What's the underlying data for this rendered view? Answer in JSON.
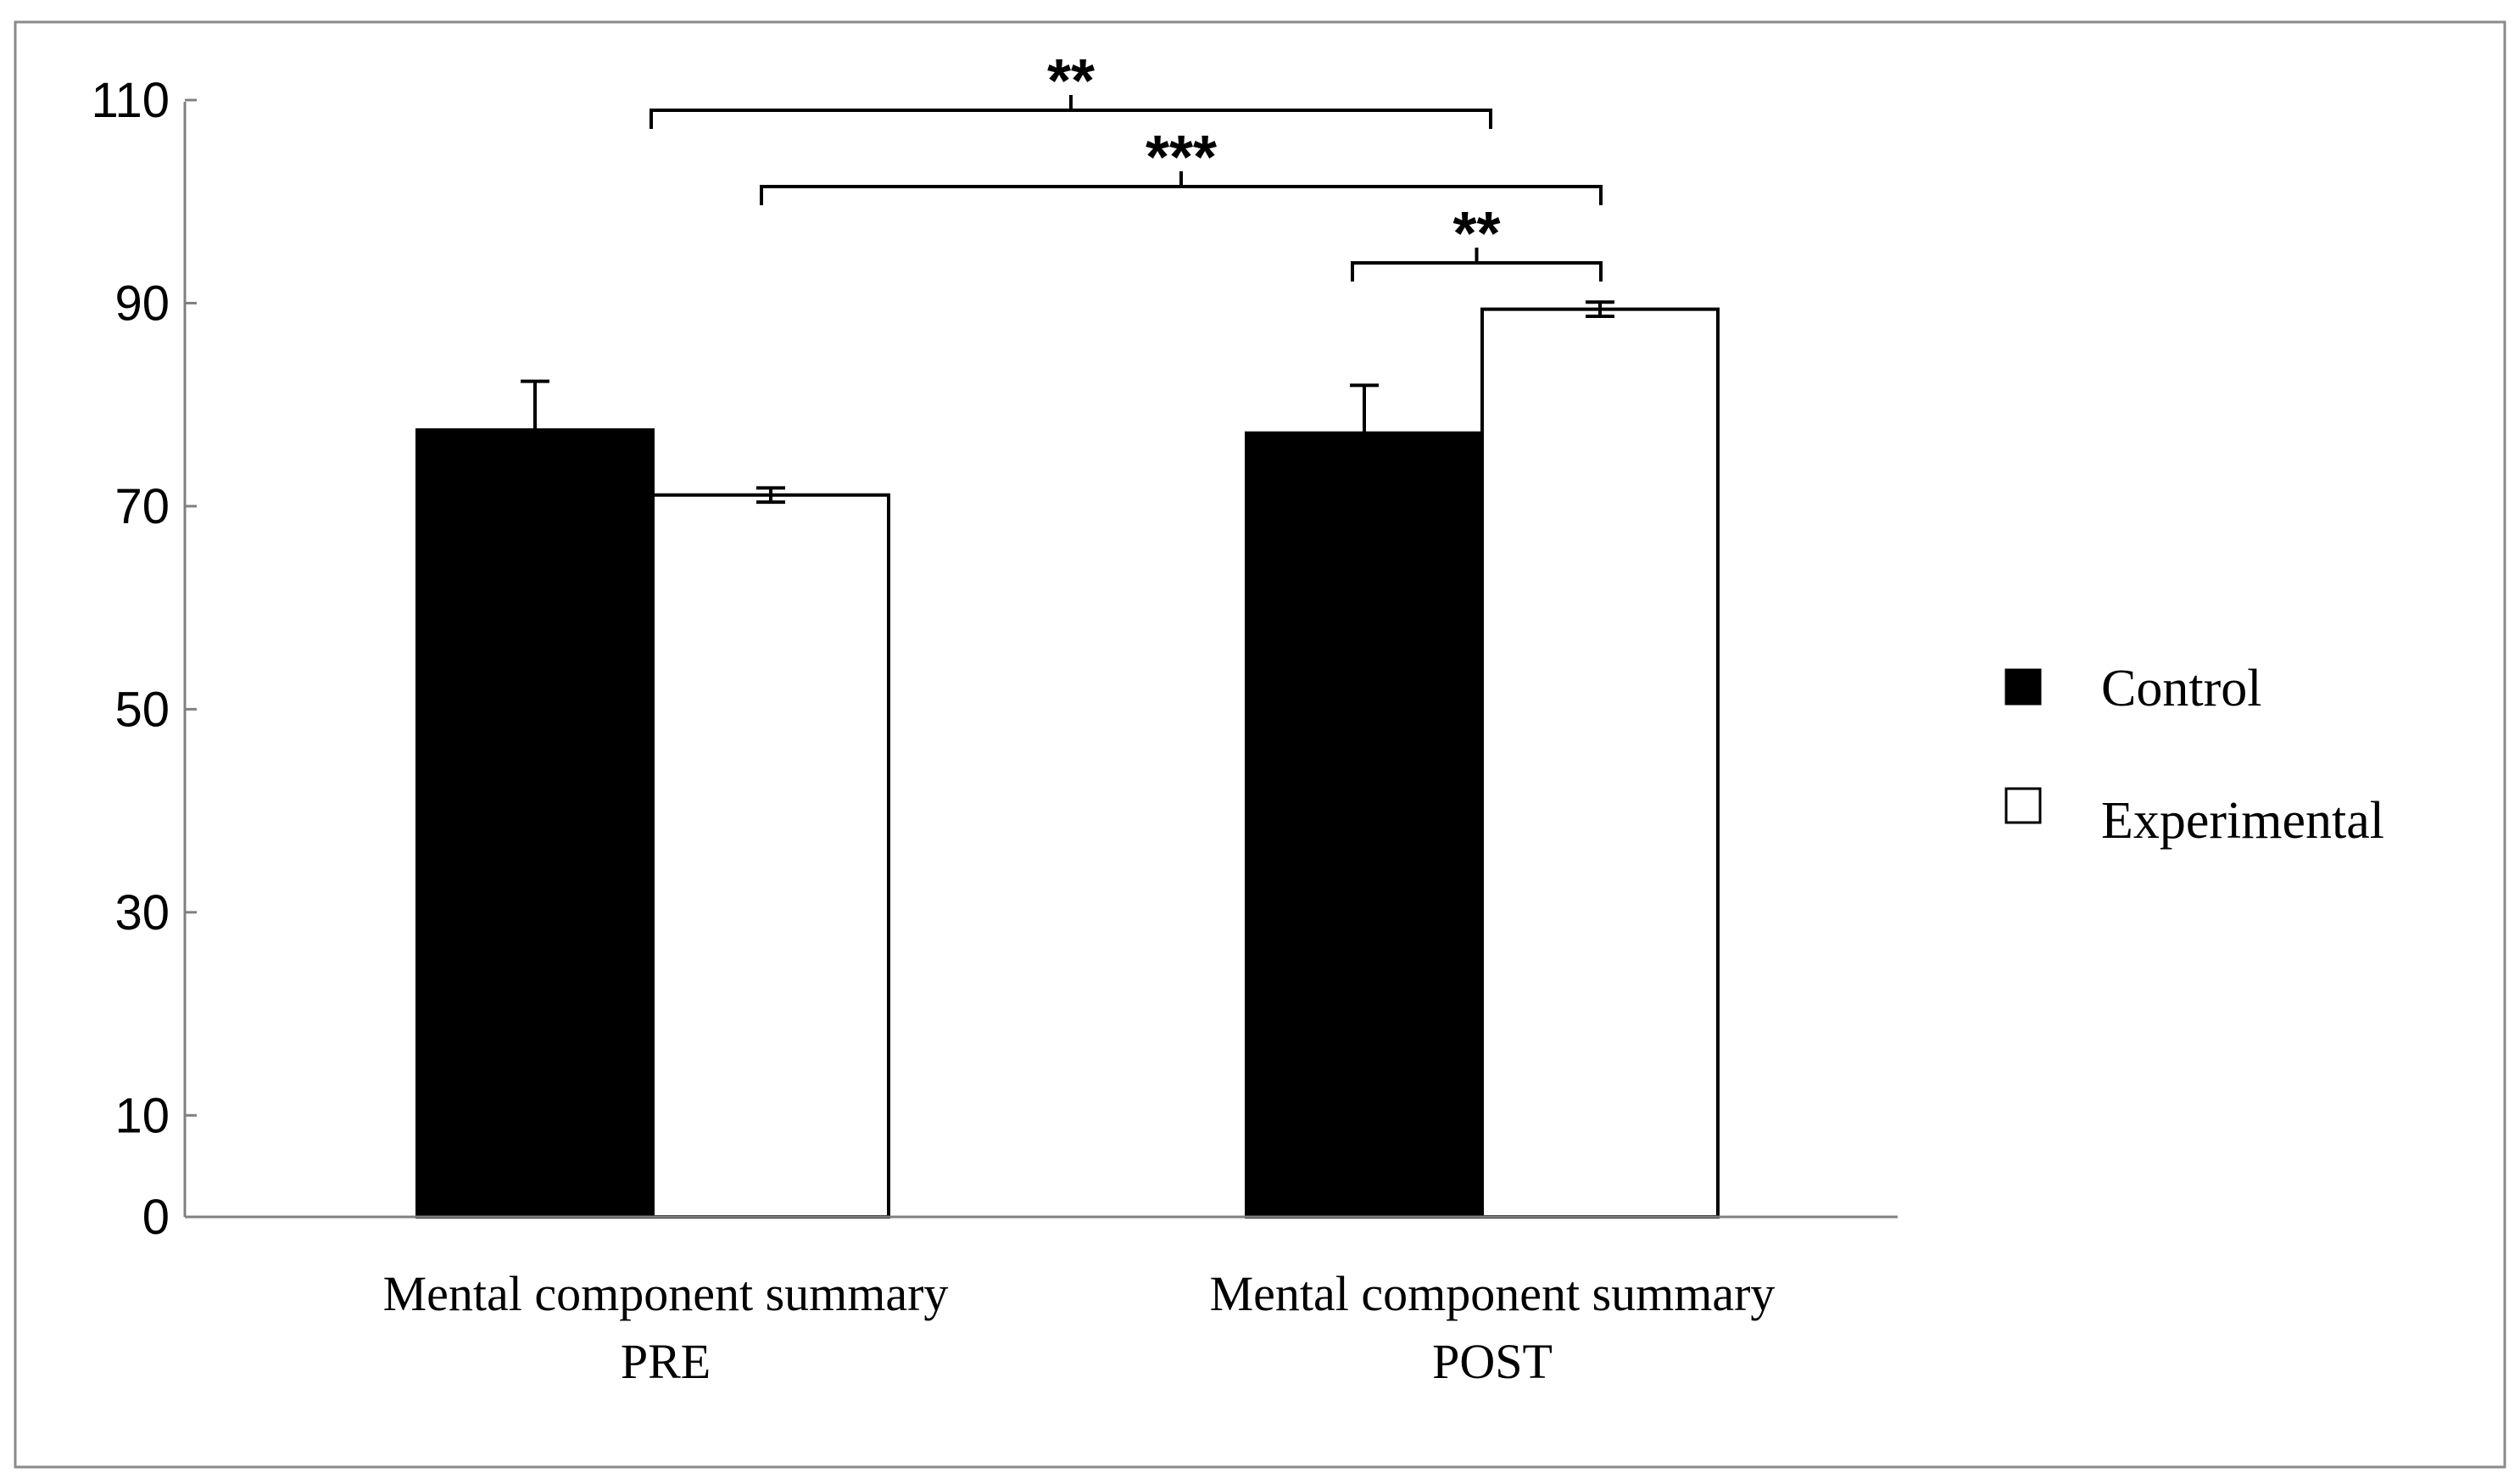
{
  "chart_data": {
    "type": "bar",
    "title": "",
    "xlabel": "",
    "ylabel": "",
    "ylim": [
      0,
      110
    ],
    "yticks": [
      "0",
      "10",
      "30",
      "50",
      "70",
      "90",
      "110"
    ],
    "ytick_values": [
      0,
      10,
      30,
      50,
      70,
      90,
      110
    ],
    "categories": [
      {
        "line1": "Mental component summary",
        "line2": "PRE"
      },
      {
        "line1": "Mental component summary",
        "line2": "POST"
      }
    ],
    "series": [
      {
        "name": "Control",
        "color": "#000000",
        "values": [
          77.5,
          77.2
        ],
        "errors": [
          4.8,
          4.7
        ]
      },
      {
        "name": "Experimental",
        "color": "#ffffff",
        "values": [
          71.1,
          89.4
        ],
        "errors": [
          0.7,
          0.7
        ]
      }
    ],
    "legend": {
      "position": "right",
      "items": [
        "Control",
        "Experimental"
      ]
    },
    "significance": [
      {
        "label": "**",
        "from": [
          0,
          1
        ],
        "to": [
          1,
          1
        ]
      },
      {
        "label": "***",
        "from": [
          0,
          1
        ],
        "to": [
          1,
          1
        ]
      },
      {
        "label": "**",
        "from": [
          1,
          0
        ],
        "to": [
          1,
          1
        ]
      }
    ],
    "grid": false
  }
}
